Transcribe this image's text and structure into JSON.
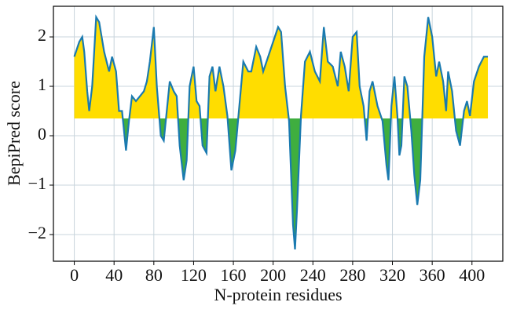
{
  "chart_data": {
    "type": "line",
    "xlabel": "N-protein residues",
    "ylabel": "BepiPred score",
    "x": [
      0,
      5,
      8,
      10,
      13,
      15,
      18,
      22,
      25,
      30,
      35,
      38,
      42,
      45,
      48,
      52,
      55,
      58,
      62,
      66,
      70,
      73,
      76,
      80,
      83,
      87,
      90,
      93,
      96,
      100,
      103,
      106,
      110,
      113,
      116,
      120,
      123,
      126,
      129,
      133,
      136,
      139,
      142,
      146,
      150,
      154,
      158,
      162,
      166,
      170,
      175,
      178,
      183,
      187,
      190,
      195,
      200,
      205,
      208,
      212,
      216,
      220,
      222,
      224,
      228,
      232,
      237,
      242,
      247,
      251,
      255,
      260,
      265,
      268,
      272,
      276,
      280,
      284,
      287,
      291,
      294,
      297,
      300,
      305,
      310,
      314,
      316,
      319,
      322,
      325,
      327,
      329,
      332,
      335,
      339,
      342,
      345,
      348,
      352,
      356,
      360,
      364,
      367,
      371,
      374,
      376,
      380,
      384,
      388,
      392,
      395,
      398,
      402,
      407,
      412,
      416
    ],
    "series": [
      {
        "name": "BepiPred",
        "color": "#1a7ab0",
        "values": [
          1.6,
          1.9,
          2.0,
          1.7,
          0.9,
          0.5,
          1.0,
          2.4,
          2.3,
          1.7,
          1.3,
          1.6,
          1.3,
          0.5,
          0.5,
          -0.3,
          0.3,
          0.8,
          0.7,
          0.8,
          0.9,
          1.1,
          1.5,
          2.2,
          1.0,
          0.0,
          -0.1,
          0.5,
          1.1,
          0.9,
          0.8,
          -0.2,
          -0.9,
          -0.5,
          1.0,
          1.4,
          0.7,
          0.6,
          -0.2,
          -0.35,
          1.2,
          1.4,
          0.9,
          1.4,
          1.0,
          0.4,
          -0.7,
          -0.3,
          0.6,
          1.5,
          1.3,
          1.3,
          1.8,
          1.6,
          1.3,
          1.6,
          1.9,
          2.2,
          2.1,
          1.0,
          0.3,
          -1.8,
          -2.3,
          -1.5,
          0.4,
          1.5,
          1.7,
          1.3,
          1.1,
          2.2,
          1.5,
          1.4,
          1.0,
          1.7,
          1.4,
          0.9,
          2.0,
          2.1,
          1.0,
          0.6,
          -0.1,
          0.9,
          1.1,
          0.6,
          0.3,
          -0.6,
          -0.9,
          0.6,
          1.2,
          0.4,
          -0.4,
          -0.2,
          1.2,
          1.0,
          0.1,
          -0.8,
          -1.4,
          -0.9,
          1.6,
          2.4,
          2.0,
          1.2,
          1.5,
          1.1,
          0.5,
          1.3,
          0.9,
          0.1,
          -0.2,
          0.5,
          0.7,
          0.4,
          1.1,
          1.4,
          1.6,
          1.6
        ]
      }
    ],
    "threshold": 0.35,
    "above_color": "#ffdd00",
    "below_color": "#3fae3f",
    "xlim": [
      -21,
      431
    ],
    "ylim": [
      -2.54,
      2.62
    ],
    "xticks": [
      0,
      40,
      80,
      120,
      160,
      200,
      240,
      280,
      320,
      360,
      400
    ],
    "yticks": [
      {
        "value": -2,
        "label": "−2"
      },
      {
        "value": -1,
        "label": "−1"
      },
      0,
      1,
      2
    ],
    "grid": true
  }
}
